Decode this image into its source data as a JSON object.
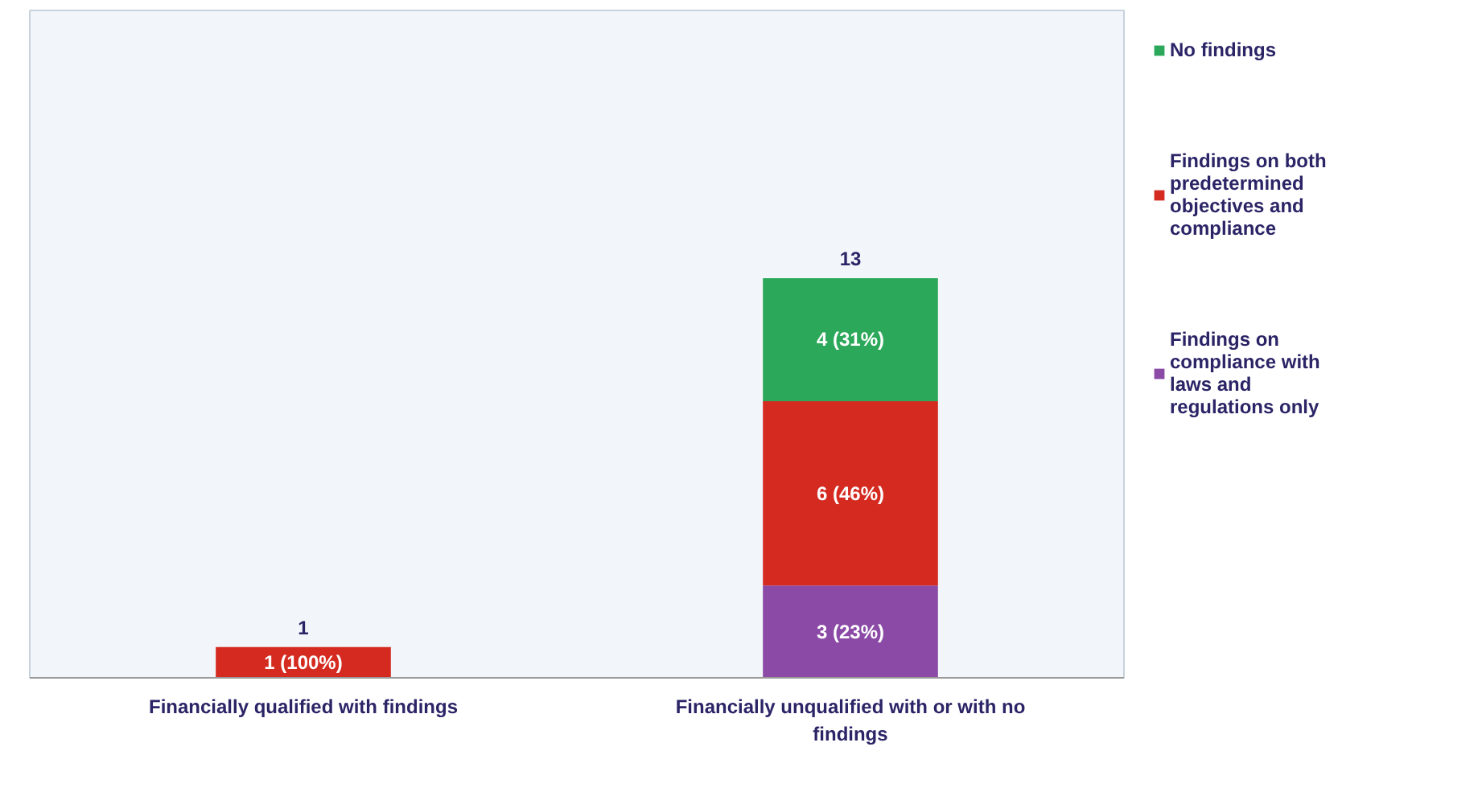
{
  "chart_data": {
    "type": "bar",
    "stacked": true,
    "legend": "right",
    "categories": [
      "Financially qualified with findings",
      "Financially unqualified with or with no findings"
    ],
    "series": [
      {
        "name": "Findings on compliance with laws and regulations only",
        "color": "#8a4aa6",
        "values": [
          0,
          3
        ],
        "value_labels": [
          null,
          "3 (23%)"
        ]
      },
      {
        "name": "Findings on both predetermined objectives and compliance",
        "color": "#d42a20",
        "values": [
          1,
          6
        ],
        "value_labels": [
          "1 (100%)",
          "6 (46%)"
        ]
      },
      {
        "name": "No findings",
        "color": "#2ca85a",
        "values": [
          0,
          4
        ],
        "value_labels": [
          null,
          "4 (31%)"
        ]
      }
    ],
    "totals": [
      "1",
      "13"
    ]
  }
}
